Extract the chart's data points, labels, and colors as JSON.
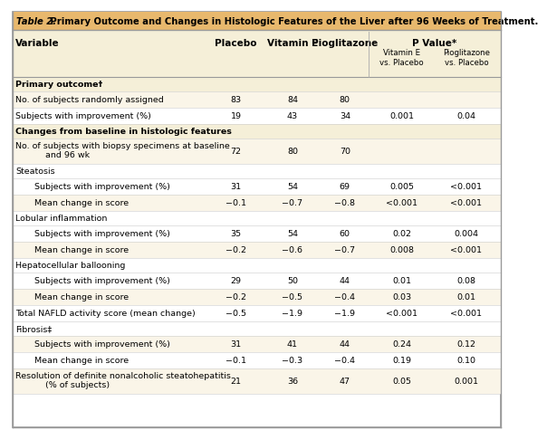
{
  "title_bold": "Table 2.",
  "title_normal": " Primary Outcome and Changes in Histologic Features of the Liver after 96 Weeks of Treatment.",
  "title_bg": "#e8b86d",
  "header_bg": "#f5efd8",
  "row_bg_tan": "#faf5e8",
  "row_bg_white": "#ffffff",
  "outer_border": "#aaaaaa",
  "inner_line": "#cccccc",
  "col_x_pct": {
    "variable": 0.013,
    "placebo": 0.458,
    "vitE": 0.572,
    "pio": 0.678,
    "pval_vitE": 0.793,
    "pval_pio": 0.923
  },
  "rows": [
    {
      "label": "Primary outcome†",
      "indent": 0,
      "bold": true,
      "section": true,
      "values": [
        "",
        "",
        "",
        "",
        ""
      ],
      "tall": false
    },
    {
      "label": "No. of subjects randomly assigned",
      "indent": 0,
      "bold": false,
      "section": false,
      "values": [
        "83",
        "84",
        "80",
        "",
        ""
      ],
      "tall": false
    },
    {
      "label": "Subjects with improvement (%)",
      "indent": 0,
      "bold": false,
      "section": false,
      "values": [
        "19",
        "43",
        "34",
        "0.001",
        "0.04"
      ],
      "tall": false
    },
    {
      "label": "Changes from baseline in histologic features",
      "indent": 0,
      "bold": true,
      "section": true,
      "values": [
        "",
        "",
        "",
        "",
        ""
      ],
      "tall": false
    },
    {
      "label": "No. of subjects with biopsy specimens at baseline\nand 96 wk",
      "indent": 0,
      "bold": false,
      "section": false,
      "values": [
        "72",
        "80",
        "70",
        "",
        ""
      ],
      "tall": true
    },
    {
      "label": "Steatosis",
      "indent": 0,
      "bold": false,
      "section": true,
      "values": [
        "",
        "",
        "",
        "",
        ""
      ],
      "tall": false
    },
    {
      "label": "Subjects with improvement (%)",
      "indent": 1,
      "bold": false,
      "section": false,
      "values": [
        "31",
        "54",
        "69",
        "0.005",
        "<0.001"
      ],
      "tall": false
    },
    {
      "label": "Mean change in score",
      "indent": 1,
      "bold": false,
      "section": false,
      "values": [
        "−0.1",
        "−0.7",
        "−0.8",
        "<0.001",
        "<0.001"
      ],
      "tall": false
    },
    {
      "label": "Lobular inflammation",
      "indent": 0,
      "bold": false,
      "section": true,
      "values": [
        "",
        "",
        "",
        "",
        ""
      ],
      "tall": false
    },
    {
      "label": "Subjects with improvement (%)",
      "indent": 1,
      "bold": false,
      "section": false,
      "values": [
        "35",
        "54",
        "60",
        "0.02",
        "0.004"
      ],
      "tall": false
    },
    {
      "label": "Mean change in score",
      "indent": 1,
      "bold": false,
      "section": false,
      "values": [
        "−0.2",
        "−0.6",
        "−0.7",
        "0.008",
        "<0.001"
      ],
      "tall": false
    },
    {
      "label": "Hepatocellular ballooning",
      "indent": 0,
      "bold": false,
      "section": true,
      "values": [
        "",
        "",
        "",
        "",
        ""
      ],
      "tall": false
    },
    {
      "label": "Subjects with improvement (%)",
      "indent": 1,
      "bold": false,
      "section": false,
      "values": [
        "29",
        "50",
        "44",
        "0.01",
        "0.08"
      ],
      "tall": false
    },
    {
      "label": "Mean change in score",
      "indent": 1,
      "bold": false,
      "section": false,
      "values": [
        "−0.2",
        "−0.5",
        "−0.4",
        "0.03",
        "0.01"
      ],
      "tall": false
    },
    {
      "label": "Total NAFLD activity score (mean change)",
      "indent": 0,
      "bold": false,
      "section": false,
      "values": [
        "−0.5",
        "−1.9",
        "−1.9",
        "<0.001",
        "<0.001"
      ],
      "tall": false
    },
    {
      "label": "Fibrosis‡",
      "indent": 0,
      "bold": false,
      "section": true,
      "values": [
        "",
        "",
        "",
        "",
        ""
      ],
      "tall": false
    },
    {
      "label": "Subjects with improvement (%)",
      "indent": 1,
      "bold": false,
      "section": false,
      "values": [
        "31",
        "41",
        "44",
        "0.24",
        "0.12"
      ],
      "tall": false
    },
    {
      "label": "Mean change in score",
      "indent": 1,
      "bold": false,
      "section": false,
      "values": [
        "−0.1",
        "−0.3",
        "−0.4",
        "0.19",
        "0.10"
      ],
      "tall": false
    },
    {
      "label": "Resolution of definite nonalcoholic steatohepatitis\n(% of subjects)",
      "indent": 0,
      "bold": false,
      "section": false,
      "values": [
        "21",
        "36",
        "47",
        "0.05",
        "0.001"
      ],
      "tall": true
    }
  ]
}
